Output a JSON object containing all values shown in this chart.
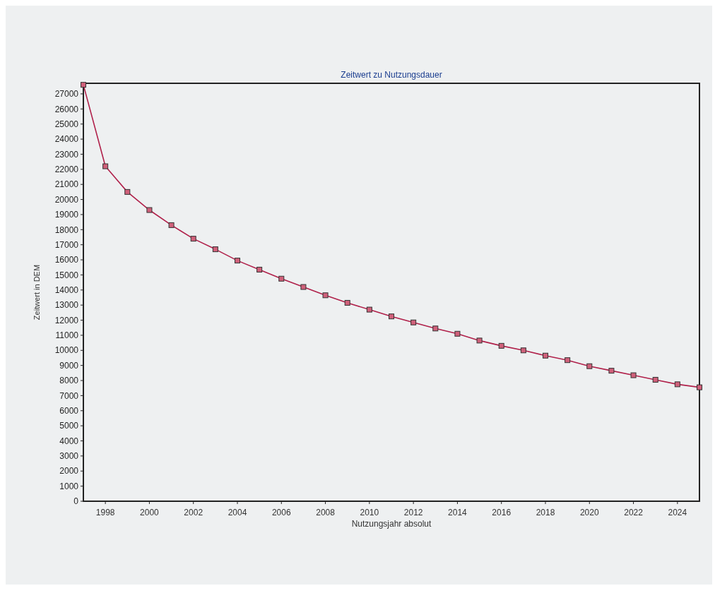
{
  "chart_data": {
    "type": "line",
    "title": "Zeitwert zu Nutzungsdauer",
    "xlabel": "Nutzungsjahr absolut",
    "ylabel": "Zeitwert in DEM",
    "x": [
      1997,
      1998,
      1999,
      2000,
      2001,
      2002,
      2003,
      2004,
      2005,
      2006,
      2007,
      2008,
      2009,
      2010,
      2011,
      2012,
      2013,
      2014,
      2015,
      2016,
      2017,
      2018,
      2019,
      2020,
      2021,
      2022,
      2023,
      2024,
      2025
    ],
    "series": [
      {
        "color": "#b0204a",
        "values": [
          27600,
          22200,
          20500,
          19300,
          18300,
          17400,
          16700,
          15950,
          15350,
          14750,
          14200,
          13650,
          13150,
          12700,
          12250,
          11850,
          11450,
          11100,
          10650,
          10300,
          10000,
          9650,
          9350,
          8950,
          8650,
          8350,
          8050,
          7750,
          7550
        ]
      }
    ],
    "xlim": [
      1997,
      2025
    ],
    "xticks": [
      1998,
      2000,
      2002,
      2004,
      2006,
      2008,
      2010,
      2012,
      2014,
      2016,
      2018,
      2020,
      2022,
      2024
    ],
    "ylim": [
      0,
      27700
    ],
    "yticks": [
      0,
      1000,
      2000,
      3000,
      4000,
      5000,
      6000,
      7000,
      8000,
      9000,
      10000,
      11000,
      12000,
      13000,
      14000,
      15000,
      16000,
      17000,
      18000,
      19000,
      20000,
      21000,
      22000,
      23000,
      24000,
      25000,
      26000,
      27000
    ],
    "grid": false,
    "marker": "square",
    "line_style": "solid"
  }
}
